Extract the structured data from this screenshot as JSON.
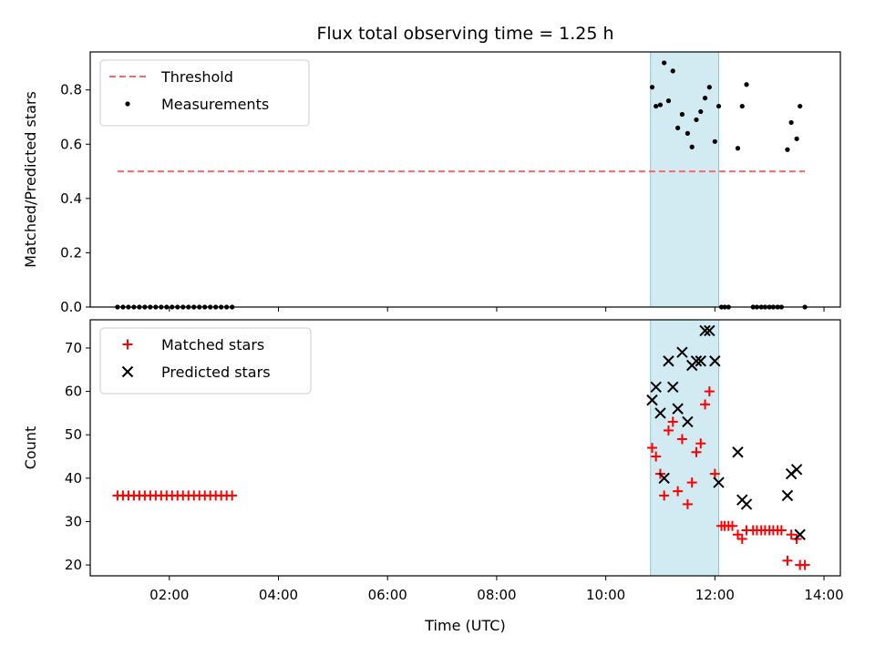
{
  "chart_data": {
    "title": "Flux total observing time = 1.25 h",
    "shared_xaxis": {
      "xlabel": "Time (UTC)",
      "xlim_hours": [
        0.55,
        14.3
      ],
      "ticks": [
        "02:00",
        "04:00",
        "06:00",
        "08:00",
        "10:00",
        "12:00",
        "14:00"
      ],
      "tick_hours": [
        2,
        4,
        6,
        8,
        10,
        12,
        14
      ]
    },
    "highlight": {
      "x_start_hours": 10.82,
      "x_end_hours": 12.07,
      "color": "#add8e6"
    },
    "panels": [
      {
        "type": "scatter",
        "ylabel": "Matched/Predicted stars",
        "ylim": [
          0,
          0.94
        ],
        "yticks": [
          "0.0",
          "0.2",
          "0.4",
          "0.6",
          "0.8"
        ],
        "ytick_values": [
          0.0,
          0.2,
          0.4,
          0.6,
          0.8
        ],
        "legend_position": "upper-left",
        "series": [
          {
            "name": "Threshold",
            "kind": "dashed-line",
            "color": "#ff6666",
            "x": [
              1.05,
              13.65
            ],
            "y": [
              0.5,
              0.5
            ]
          },
          {
            "name": "Measurements",
            "kind": "dot",
            "color": "#000000",
            "x": [
              1.05,
              1.15,
              1.25,
              1.35,
              1.45,
              1.55,
              1.65,
              1.75,
              1.85,
              1.95,
              2.05,
              2.15,
              2.25,
              2.35,
              2.45,
              2.55,
              2.65,
              2.75,
              2.85,
              2.95,
              3.05,
              3.15,
              10.85,
              10.92,
              11.0,
              11.07,
              11.15,
              11.23,
              11.32,
              11.4,
              11.5,
              11.58,
              11.66,
              11.74,
              11.82,
              11.9,
              12.0,
              12.07,
              12.12,
              12.18,
              12.25,
              12.42,
              12.5,
              12.58,
              12.7,
              12.77,
              12.85,
              12.92,
              13.0,
              13.07,
              13.15,
              13.22,
              13.33,
              13.4,
              13.5,
              13.56,
              13.65
            ],
            "y": [
              0,
              0,
              0,
              0,
              0,
              0,
              0,
              0,
              0,
              0,
              0,
              0,
              0,
              0,
              0,
              0,
              0,
              0,
              0,
              0,
              0,
              0,
              0.81,
              0.74,
              0.745,
              0.9,
              0.76,
              0.87,
              0.66,
              0.71,
              0.64,
              0.59,
              0.69,
              0.72,
              0.77,
              0.81,
              0.61,
              0.74,
              0,
              0,
              0,
              0.585,
              0.74,
              0.82,
              0,
              0,
              0,
              0,
              0,
              0,
              0,
              0,
              0.58,
              0.68,
              0.62,
              0.74,
              0
            ]
          }
        ]
      },
      {
        "type": "scatter",
        "ylabel": "Count",
        "ylim": [
          17.5,
          76.5
        ],
        "yticks": [
          "20",
          "30",
          "40",
          "50",
          "60",
          "70"
        ],
        "ytick_values": [
          20,
          30,
          40,
          50,
          60,
          70
        ],
        "legend_position": "upper-left",
        "series": [
          {
            "name": "Matched stars",
            "kind": "plus",
            "color": "#ff0000",
            "x": [
              1.05,
              1.15,
              1.25,
              1.35,
              1.45,
              1.55,
              1.65,
              1.75,
              1.85,
              1.95,
              2.05,
              2.15,
              2.25,
              2.35,
              2.45,
              2.55,
              2.65,
              2.75,
              2.85,
              2.95,
              3.05,
              3.15,
              10.85,
              10.92,
              11.0,
              11.07,
              11.15,
              11.23,
              11.32,
              11.4,
              11.5,
              11.58,
              11.66,
              11.74,
              11.82,
              11.9,
              12.0,
              12.12,
              12.18,
              12.25,
              12.32,
              12.42,
              12.5,
              12.58,
              12.7,
              12.77,
              12.85,
              12.92,
              13.0,
              13.07,
              13.15,
              13.22,
              13.33,
              13.4,
              13.5,
              13.56,
              13.65
            ],
            "y": [
              36,
              36,
              36,
              36,
              36,
              36,
              36,
              36,
              36,
              36,
              36,
              36,
              36,
              36,
              36,
              36,
              36,
              36,
              36,
              36,
              36,
              36,
              47,
              45,
              41,
              36,
              51,
              53,
              37,
              49,
              34,
              39,
              46,
              48,
              57,
              60,
              41,
              29,
              29,
              29,
              29,
              27,
              26,
              28,
              28,
              28,
              28,
              28,
              28,
              28,
              28,
              28,
              21,
              27,
              26,
              20,
              20
            ]
          },
          {
            "name": "Predicted stars",
            "kind": "x",
            "color": "#000000",
            "x": [
              10.85,
              10.92,
              11.0,
              11.07,
              11.15,
              11.23,
              11.32,
              11.4,
              11.5,
              11.58,
              11.66,
              11.74,
              11.82,
              11.9,
              12.0,
              12.07,
              12.42,
              12.5,
              12.58,
              13.33,
              13.4,
              13.5,
              13.56
            ],
            "y": [
              58,
              61,
              55,
              40,
              67,
              61,
              56,
              69,
              53,
              66,
              67,
              67,
              74,
              74,
              67,
              39,
              46,
              35,
              34,
              36,
              41,
              42,
              27
            ]
          }
        ]
      }
    ]
  }
}
